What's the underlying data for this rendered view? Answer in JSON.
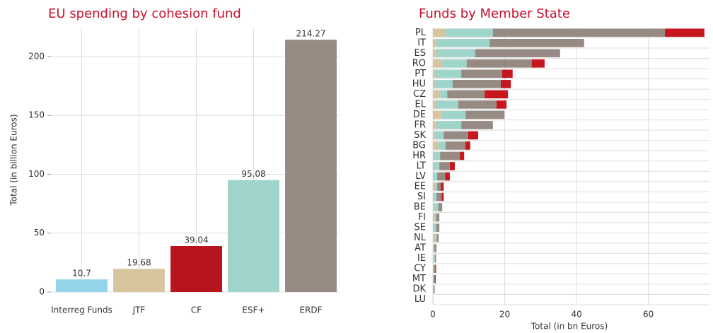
{
  "chart_data": [
    {
      "type": "bar",
      "title": "EU spending by cohesion fund",
      "y_label": "Total (in billion Euros)",
      "categories": [
        "Interreg Funds",
        "JTF",
        "CF",
        "ESF+",
        "ERDF"
      ],
      "values": [
        10.7,
        19.68,
        39.04,
        95.08,
        214.27
      ],
      "colors": [
        "#93d4ea",
        "#d8c59d",
        "#b8141e",
        "#9fd4ca",
        "#978a82"
      ],
      "ylim": [
        0,
        224
      ],
      "yticks": [
        0,
        50,
        100,
        150,
        200
      ],
      "grid": true
    },
    {
      "type": "hbar_stacked",
      "title": "Funds by Member State",
      "x_label": "Total (in bn Euros)",
      "categories": [
        "PL",
        "IT",
        "ES",
        "RO",
        "PT",
        "HU",
        "CZ",
        "EL",
        "DE",
        "FR",
        "SK",
        "BG",
        "HR",
        "LT",
        "LV",
        "EE",
        "SI",
        "BE",
        "FI",
        "SE",
        "NL",
        "AT",
        "IE",
        "CY",
        "MT",
        "DK",
        "LU"
      ],
      "series": [
        {
          "name": "JTF",
          "color": "#d8c59d",
          "values": [
            3.5,
            1,
            1,
            2.5,
            0.5,
            0.5,
            2,
            1,
            2.5,
            1,
            0.5,
            1.5,
            0.3,
            0.3,
            0.2,
            0.7,
            0.2,
            0.3,
            0.5,
            0.2,
            0.6,
            0,
            0.2,
            0,
            0,
            0,
            0
          ]
        },
        {
          "name": "ESF+",
          "color": "#9fd4ca",
          "values": [
            13.2,
            14.8,
            10.8,
            6.9,
            7.4,
            5,
            2,
            6.1,
            6.6,
            6.9,
            2.5,
            2,
            1.7,
            1.5,
            1,
            0.5,
            0.8,
            1.2,
            0.4,
            0.7,
            0.5,
            0.4,
            0.4,
            0.3,
            0.2,
            0.2,
            0.05
          ]
        },
        {
          "name": "ERDF",
          "color": "#978a82",
          "values": [
            47.9,
            26.3,
            23.6,
            18.1,
            11.4,
            13.4,
            10.4,
            10.6,
            10.8,
            8.8,
            6.8,
            5.5,
            5.5,
            2.9,
            2.2,
            1,
            1.4,
            1.1,
            0.9,
            0.9,
            0.5,
            0.6,
            0.3,
            0.4,
            0.4,
            0.3,
            0.05
          ]
        },
        {
          "name": "CF",
          "color": "#c8161e",
          "values": [
            11,
            0,
            0,
            3.6,
            2.9,
            2.8,
            6.5,
            2.8,
            0,
            0,
            2.8,
            1.4,
            1.2,
            1.4,
            1.3,
            0.8,
            0.6,
            0,
            0,
            0,
            0,
            0,
            0,
            0.2,
            0.2,
            0,
            0
          ]
        }
      ],
      "xlim": [
        0,
        77
      ],
      "xticks": [
        0,
        20,
        40,
        60
      ],
      "grid": true
    }
  ]
}
